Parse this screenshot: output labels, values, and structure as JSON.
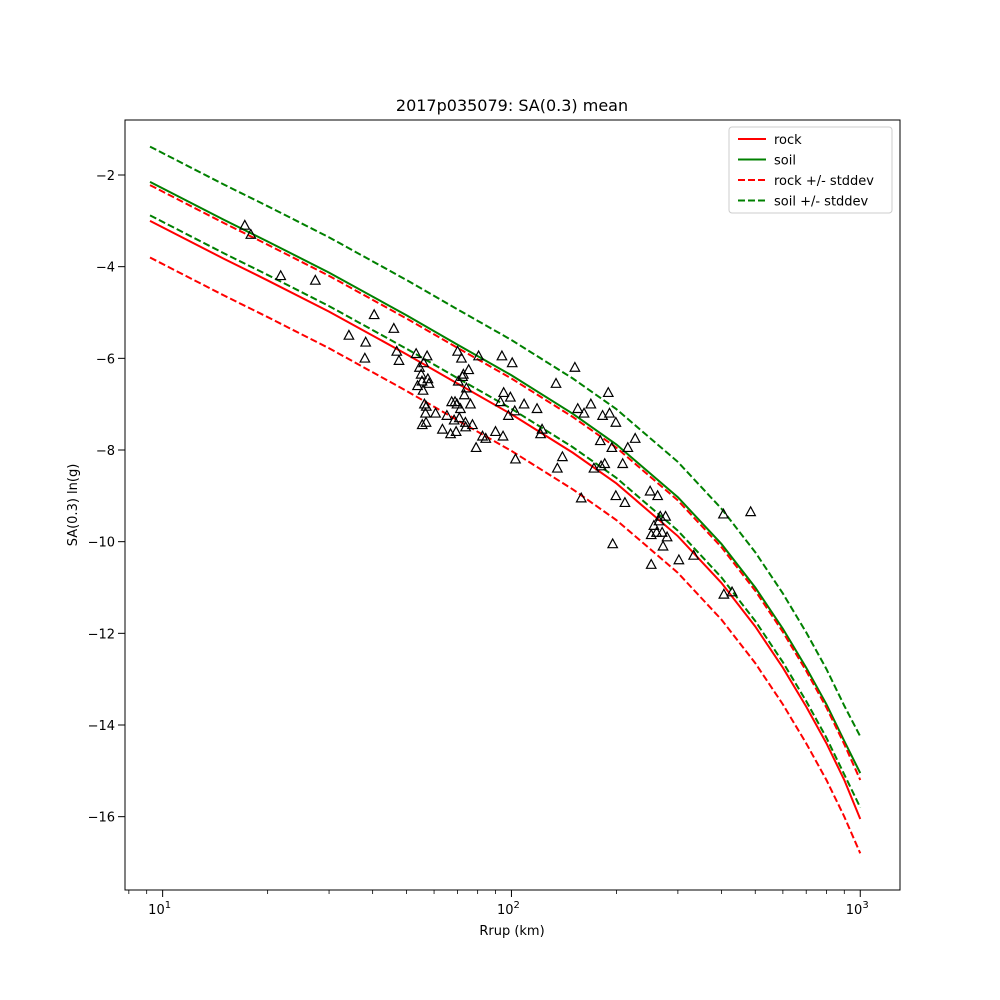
{
  "chart_data": {
    "type": "scatter",
    "title": "2017p035079: SA(0.3) mean",
    "xlabel": "Rrup (km)",
    "ylabel": "SA(0.3) ln(g)",
    "xscale": "log",
    "xlim": [
      7.8,
      1300
    ],
    "ylim": [
      -17.6,
      -0.8
    ],
    "xticks": [
      {
        "value": 10,
        "base": "10",
        "exp": "1"
      },
      {
        "value": 100,
        "base": "10",
        "exp": "2"
      },
      {
        "value": 1000,
        "base": "10",
        "exp": "3"
      }
    ],
    "yticks": [
      {
        "value": -2,
        "label": "−2"
      },
      {
        "value": -4,
        "label": "−4"
      },
      {
        "value": -6,
        "label": "−6"
      },
      {
        "value": -8,
        "label": "−8"
      },
      {
        "value": -10,
        "label": "−10"
      },
      {
        "value": -12,
        "label": "−12"
      },
      {
        "value": -14,
        "label": "−14"
      },
      {
        "value": -16,
        "label": "−16"
      }
    ],
    "grid": false,
    "legend_position": "top-right",
    "legend": [
      {
        "label": "rock",
        "color": "#ff0000",
        "style": "solid"
      },
      {
        "label": "soil",
        "color": "#008000",
        "style": "solid"
      },
      {
        "label": "rock +/- stddev",
        "color": "#ff0000",
        "style": "dashed"
      },
      {
        "label": "soil +/- stddev",
        "color": "#008000",
        "style": "dashed"
      }
    ],
    "curves_x": [
      9.2,
      15,
      20,
      30,
      50,
      70,
      100,
      150,
      200,
      300,
      400,
      500,
      600,
      700,
      800,
      900,
      1000
    ],
    "series": [
      {
        "key": "rock",
        "color": "#ff0000",
        "style": "solid",
        "y": [
          -3.0,
          -3.83,
          -4.3,
          -4.98,
          -5.91,
          -6.55,
          -7.22,
          -8.06,
          -8.73,
          -9.88,
          -10.9,
          -11.85,
          -12.75,
          -13.6,
          -14.4,
          -15.2,
          -16.05
        ]
      },
      {
        "key": "soil",
        "color": "#008000",
        "style": "solid",
        "y": [
          -2.15,
          -2.98,
          -3.45,
          -4.13,
          -5.06,
          -5.7,
          -6.37,
          -7.21,
          -7.88,
          -9.03,
          -10.05,
          -11.0,
          -11.9,
          -12.75,
          -13.55,
          -14.35,
          -15.05
        ]
      },
      {
        "key": "rock_plus",
        "color": "#ff0000",
        "style": "dashed",
        "y": [
          -2.22,
          -3.05,
          -3.52,
          -4.2,
          -5.13,
          -5.77,
          -6.44,
          -7.28,
          -7.95,
          -9.1,
          -10.12,
          -11.07,
          -11.97,
          -12.82,
          -13.62,
          -14.42,
          -15.2
        ]
      },
      {
        "key": "rock_minus",
        "color": "#ff0000",
        "style": "dashed",
        "y": [
          -3.8,
          -4.63,
          -5.1,
          -5.78,
          -6.71,
          -7.35,
          -8.02,
          -8.86,
          -9.53,
          -10.68,
          -11.7,
          -12.65,
          -13.55,
          -14.4,
          -15.2,
          -16.0,
          -16.8
        ]
      },
      {
        "key": "soil_plus",
        "color": "#008000",
        "style": "dashed",
        "y": [
          -1.38,
          -2.21,
          -2.68,
          -3.36,
          -4.29,
          -4.93,
          -5.6,
          -6.44,
          -7.11,
          -8.26,
          -9.28,
          -10.23,
          -11.13,
          -11.98,
          -12.78,
          -13.58,
          -14.25
        ]
      },
      {
        "key": "soil_minus",
        "color": "#008000",
        "style": "dashed",
        "y": [
          -2.88,
          -3.71,
          -4.18,
          -4.86,
          -5.79,
          -6.43,
          -7.1,
          -7.94,
          -8.61,
          -9.76,
          -10.78,
          -11.73,
          -12.63,
          -13.48,
          -14.28,
          -15.08,
          -15.8
        ]
      }
    ],
    "observations": [
      [
        17.2,
        -3.1
      ],
      [
        17.9,
        -3.3
      ],
      [
        21.8,
        -4.2
      ],
      [
        27.4,
        -4.3
      ],
      [
        34.2,
        -5.5
      ],
      [
        38.2,
        -5.65
      ],
      [
        38.0,
        -6.0
      ],
      [
        40.4,
        -5.05
      ],
      [
        46.0,
        -5.35
      ],
      [
        46.9,
        -5.85
      ],
      [
        47.6,
        -6.05
      ],
      [
        53.3,
        -5.9
      ],
      [
        53.8,
        -6.6
      ],
      [
        54.5,
        -6.2
      ],
      [
        55.1,
        -6.35
      ],
      [
        55.4,
        -6.5
      ],
      [
        55.8,
        -6.7
      ],
      [
        56.0,
        -6.1
      ],
      [
        56.3,
        -7.0
      ],
      [
        56.7,
        -7.2
      ],
      [
        55.5,
        -7.45
      ],
      [
        56.9,
        -7.4
      ],
      [
        57.3,
        -5.95
      ],
      [
        57.6,
        -6.45
      ],
      [
        58.0,
        -6.55
      ],
      [
        57.0,
        -7.05
      ],
      [
        60.6,
        -7.2
      ],
      [
        63.4,
        -7.55
      ],
      [
        65.3,
        -7.25
      ],
      [
        66.9,
        -7.65
      ],
      [
        67.4,
        -6.95
      ],
      [
        68.5,
        -7.35
      ],
      [
        68.9,
        -6.95
      ],
      [
        69.4,
        -7.6
      ],
      [
        69.8,
        -7.0
      ],
      [
        70.4,
        -6.5
      ],
      [
        70.9,
        -7.3
      ],
      [
        71.4,
        -7.1
      ],
      [
        70.1,
        -5.85
      ],
      [
        71.9,
        -6.0
      ],
      [
        72.4,
        -6.4
      ],
      [
        72.8,
        -6.35
      ],
      [
        73.3,
        -6.8
      ],
      [
        73.8,
        -7.4
      ],
      [
        73.9,
        -7.5
      ],
      [
        74.3,
        -6.65
      ],
      [
        75.4,
        -6.25
      ],
      [
        76.3,
        -7.0
      ],
      [
        77.3,
        -7.45
      ],
      [
        79.2,
        -7.95
      ],
      [
        80.5,
        -5.95
      ],
      [
        82.6,
        -7.7
      ],
      [
        84.4,
        -7.75
      ],
      [
        90.0,
        -7.6
      ],
      [
        93.0,
        -6.95
      ],
      [
        93.9,
        -5.95
      ],
      [
        94.6,
        -7.7
      ],
      [
        95.0,
        -6.75
      ],
      [
        98.0,
        -7.25
      ],
      [
        99.3,
        -6.85
      ],
      [
        100.5,
        -6.1
      ],
      [
        102.2,
        -7.15
      ],
      [
        102.7,
        -8.2
      ],
      [
        108.7,
        -7.0
      ],
      [
        118.4,
        -7.1
      ],
      [
        121.2,
        -7.65
      ],
      [
        122.4,
        -7.55
      ],
      [
        134.2,
        -6.55
      ],
      [
        135.4,
        -8.4
      ],
      [
        140.0,
        -8.15
      ],
      [
        152.0,
        -6.2
      ],
      [
        154.9,
        -7.1
      ],
      [
        158.5,
        -9.05
      ],
      [
        161.5,
        -7.2
      ],
      [
        168.9,
        -7.0
      ],
      [
        172.4,
        -8.4
      ],
      [
        179.8,
        -7.8
      ],
      [
        180.7,
        -8.35
      ],
      [
        182.5,
        -7.25
      ],
      [
        185.1,
        -8.3
      ],
      [
        189.5,
        -6.75
      ],
      [
        191.1,
        -7.2
      ],
      [
        194.0,
        -7.95
      ],
      [
        195.1,
        -10.05
      ],
      [
        199.2,
        -7.4
      ],
      [
        199.2,
        -9.0
      ],
      [
        208.4,
        -8.3
      ],
      [
        211.5,
        -9.15
      ],
      [
        215.6,
        -7.95
      ],
      [
        226.3,
        -7.75
      ],
      [
        249.8,
        -8.9
      ],
      [
        251.6,
        -9.85
      ],
      [
        251.6,
        -10.5
      ],
      [
        256.1,
        -9.65
      ],
      [
        260.7,
        -9.8
      ],
      [
        262.5,
        -9.0
      ],
      [
        264.9,
        -9.55
      ],
      [
        267.1,
        -9.45
      ],
      [
        270.4,
        -9.8
      ],
      [
        272.0,
        -10.1
      ],
      [
        276.6,
        -9.45
      ],
      [
        279.4,
        -9.9
      ],
      [
        302.0,
        -10.4
      ],
      [
        333.0,
        -10.3
      ],
      [
        406.4,
        -11.15
      ],
      [
        405.3,
        -9.4
      ],
      [
        429.0,
        -11.1
      ],
      [
        485.0,
        -9.35
      ]
    ]
  }
}
